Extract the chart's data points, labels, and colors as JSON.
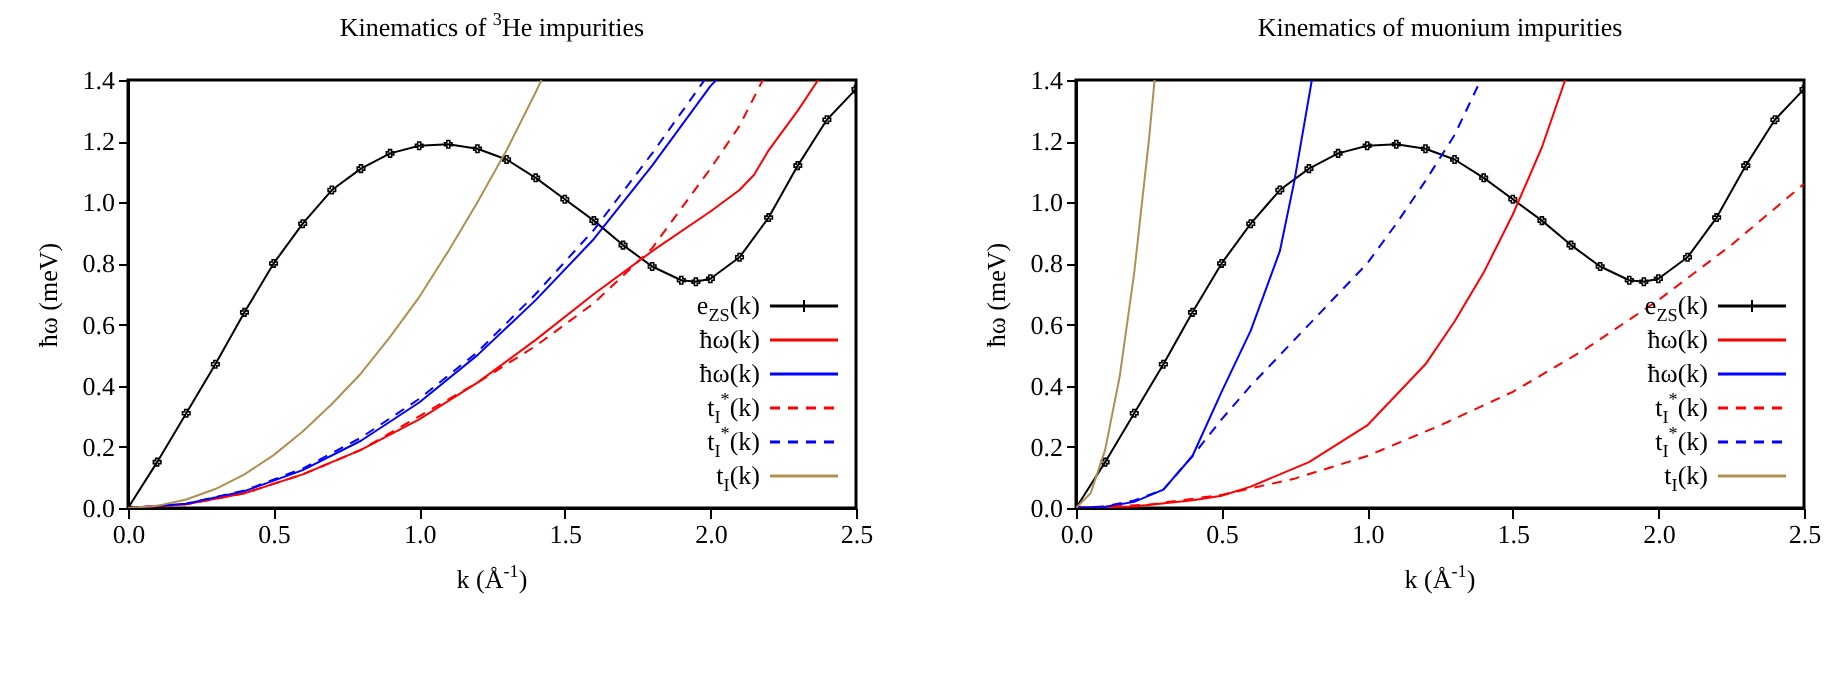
{
  "chart_data": [
    {
      "type": "line",
      "title": "Kinematics of $^{3}$He impurities",
      "xlabel": "k (Å$^{-1}$)",
      "ylabel": "ħω  (meV)",
      "xlim": [
        0,
        2.5
      ],
      "ylim": [
        0,
        1.4
      ],
      "xticks": [
        {
          "value": 0,
          "label": "0.0"
        },
        {
          "value": 0.5,
          "label": "0.5"
        },
        {
          "value": 1,
          "label": "1.0"
        },
        {
          "value": 1.5,
          "label": "1.5"
        },
        {
          "value": 2,
          "label": "2.0"
        },
        {
          "value": 2.5,
          "label": "2.5"
        }
      ],
      "yticks": [
        {
          "value": 0,
          "label": "0.0"
        },
        {
          "value": 0.2,
          "label": "0.2"
        },
        {
          "value": 0.4,
          "label": "0.4"
        },
        {
          "value": 0.6,
          "label": "0.6"
        },
        {
          "value": 0.8,
          "label": "0.8"
        },
        {
          "value": 1,
          "label": "1.0"
        },
        {
          "value": 1.2,
          "label": "1.2"
        },
        {
          "value": 1.4,
          "label": "1.4"
        }
      ],
      "grid": false,
      "legend": "bottom right",
      "series": [
        {
          "name": "e$_{ZS}$(k)",
          "color": "#000000",
          "marker": "cross",
          "line_style": "solid",
          "x": [
            0,
            0.1,
            0.2,
            0.3,
            0.4,
            0.5,
            0.6,
            0.7,
            0.8,
            0.9,
            1.0,
            1.1,
            1.2,
            1.3,
            1.4,
            1.5,
            1.6,
            1.7,
            1.8,
            1.9,
            1.95,
            2.0,
            2.1,
            2.2,
            2.3,
            2.4,
            2.5
          ],
          "values": [
            0,
            0.15,
            0.31,
            0.47,
            0.64,
            0.8,
            0.93,
            1.04,
            1.11,
            1.16,
            1.185,
            1.19,
            1.175,
            1.14,
            1.08,
            1.01,
            0.94,
            0.86,
            0.79,
            0.745,
            0.74,
            0.75,
            0.82,
            0.95,
            1.12,
            1.27,
            1.37
          ]
        },
        {
          "name": "ħω(k)",
          "color": "#ff0000",
          "line_style": "solid",
          "x": [
            0,
            0.2,
            0.4,
            0.6,
            0.8,
            1.0,
            1.2,
            1.4,
            1.6,
            1.8,
            2.0,
            2.1,
            2.15,
            2.2,
            2.3,
            2.37
          ],
          "values": [
            0,
            0.012,
            0.048,
            0.11,
            0.19,
            0.29,
            0.41,
            0.55,
            0.7,
            0.84,
            0.97,
            1.04,
            1.09,
            1.17,
            1.3,
            1.4
          ]
        },
        {
          "name": "ħω(k)",
          "color": "#0000ff",
          "line_style": "solid",
          "x": [
            0,
            0.2,
            0.4,
            0.6,
            0.8,
            1.0,
            1.2,
            1.4,
            1.6,
            1.8,
            2.0,
            2.02
          ],
          "values": [
            0,
            0.014,
            0.055,
            0.124,
            0.22,
            0.345,
            0.5,
            0.68,
            0.88,
            1.12,
            1.38,
            1.4
          ]
        },
        {
          "name": "t$_{I}$$^{*}$(k)",
          "color": "#ff0000",
          "line_style": "dashed",
          "x": [
            0,
            0.2,
            0.4,
            0.6,
            0.8,
            1.0,
            1.2,
            1.4,
            1.5,
            1.6,
            1.8,
            2.0,
            2.1,
            2.18
          ],
          "values": [
            0,
            0.012,
            0.048,
            0.11,
            0.19,
            0.3,
            0.41,
            0.53,
            0.6,
            0.67,
            0.85,
            1.11,
            1.25,
            1.4
          ]
        },
        {
          "name": "t$_{I}$$^{*}$(k)",
          "color": "#0000ff",
          "line_style": "dashed",
          "x": [
            0,
            0.2,
            0.4,
            0.6,
            0.8,
            1.0,
            1.2,
            1.4,
            1.6,
            1.8,
            1.98
          ],
          "values": [
            0,
            0.014,
            0.057,
            0.129,
            0.23,
            0.357,
            0.51,
            0.7,
            0.91,
            1.16,
            1.4
          ]
        },
        {
          "name": "t$_{I}$(k)",
          "color": "#b09050",
          "line_style": "solid",
          "x": [
            0,
            0.1,
            0.2,
            0.3,
            0.4,
            0.5,
            0.6,
            0.7,
            0.8,
            0.9,
            1.0,
            1.1,
            1.2,
            1.3,
            1.4,
            1.42
          ],
          "values": [
            0,
            0.007,
            0.028,
            0.062,
            0.11,
            0.173,
            0.25,
            0.34,
            0.44,
            0.56,
            0.69,
            0.84,
            1.0,
            1.17,
            1.36,
            1.4
          ]
        }
      ]
    },
    {
      "type": "line",
      "title": "Kinematics of muonium impurities",
      "xlabel": "k (Å$^{-1}$)",
      "ylabel": "ħω  (meV)",
      "xlim": [
        0,
        2.5
      ],
      "ylim": [
        0,
        1.4
      ],
      "xticks": [
        {
          "value": 0,
          "label": "0.0"
        },
        {
          "value": 0.5,
          "label": "0.5"
        },
        {
          "value": 1,
          "label": "1.0"
        },
        {
          "value": 1.5,
          "label": "1.5"
        },
        {
          "value": 2,
          "label": "2.0"
        },
        {
          "value": 2.5,
          "label": "2.5"
        }
      ],
      "yticks": [
        {
          "value": 0,
          "label": "0.0"
        },
        {
          "value": 0.2,
          "label": "0.2"
        },
        {
          "value": 0.4,
          "label": "0.4"
        },
        {
          "value": 0.6,
          "label": "0.6"
        },
        {
          "value": 0.8,
          "label": "0.8"
        },
        {
          "value": 1,
          "label": "1.0"
        },
        {
          "value": 1.2,
          "label": "1.2"
        },
        {
          "value": 1.4,
          "label": "1.4"
        }
      ],
      "grid": false,
      "legend": "bottom right",
      "series": [
        {
          "name": "e$_{ZS}$(k)",
          "color": "#000000",
          "marker": "cross",
          "line_style": "solid",
          "x": [
            0,
            0.1,
            0.2,
            0.3,
            0.4,
            0.5,
            0.6,
            0.7,
            0.8,
            0.9,
            1.0,
            1.1,
            1.2,
            1.3,
            1.4,
            1.5,
            1.6,
            1.7,
            1.8,
            1.9,
            1.95,
            2.0,
            2.1,
            2.2,
            2.3,
            2.4,
            2.5
          ],
          "values": [
            0,
            0.15,
            0.31,
            0.47,
            0.64,
            0.8,
            0.93,
            1.04,
            1.11,
            1.16,
            1.185,
            1.19,
            1.175,
            1.14,
            1.08,
            1.01,
            0.94,
            0.86,
            0.79,
            0.745,
            0.74,
            0.75,
            0.82,
            0.95,
            1.12,
            1.27,
            1.37
          ]
        },
        {
          "name": "ħω(k)",
          "color": "#ff0000",
          "line_style": "solid",
          "x": [
            0,
            0.2,
            0.4,
            0.5,
            0.6,
            0.8,
            1.0,
            1.2,
            1.3,
            1.4,
            1.5,
            1.6,
            1.68
          ],
          "values": [
            0,
            0.005,
            0.025,
            0.04,
            0.07,
            0.15,
            0.27,
            0.47,
            0.61,
            0.77,
            0.96,
            1.18,
            1.4
          ]
        },
        {
          "name": "ħω(k)",
          "color": "#0000ff",
          "line_style": "solid",
          "x": [
            0,
            0.1,
            0.2,
            0.3,
            0.4,
            0.5,
            0.6,
            0.7,
            0.75,
            0.81
          ],
          "values": [
            0,
            0.004,
            0.02,
            0.06,
            0.17,
            0.38,
            0.58,
            0.84,
            1.07,
            1.4
          ]
        },
        {
          "name": "t$_{I}$$^{*}$(k)",
          "color": "#ff0000",
          "line_style": "dashed",
          "x": [
            0,
            0.25,
            0.5,
            0.75,
            1.0,
            1.25,
            1.5,
            1.75,
            2.0,
            2.25,
            2.5
          ],
          "values": [
            0,
            0.011,
            0.043,
            0.096,
            0.17,
            0.27,
            0.38,
            0.52,
            0.68,
            0.86,
            1.06
          ]
        },
        {
          "name": "t$_{I}$$^{*}$(k)",
          "color": "#0000ff",
          "line_style": "dashed",
          "x": [
            0,
            0.1,
            0.2,
            0.3,
            0.4,
            0.5,
            0.6,
            0.7,
            0.8,
            0.9,
            1.0,
            1.1,
            1.2,
            1.3,
            1.39
          ],
          "values": [
            0,
            0.005,
            0.025,
            0.06,
            0.17,
            0.29,
            0.4,
            0.5,
            0.6,
            0.7,
            0.8,
            0.93,
            1.07,
            1.22,
            1.4
          ]
        },
        {
          "name": "t$_{I}$(k)",
          "color": "#b09050",
          "line_style": "solid",
          "x": [
            0,
            0.05,
            0.1,
            0.15,
            0.2,
            0.25,
            0.27
          ],
          "values": [
            0,
            0.048,
            0.19,
            0.43,
            0.77,
            1.2,
            1.4
          ]
        }
      ]
    }
  ]
}
